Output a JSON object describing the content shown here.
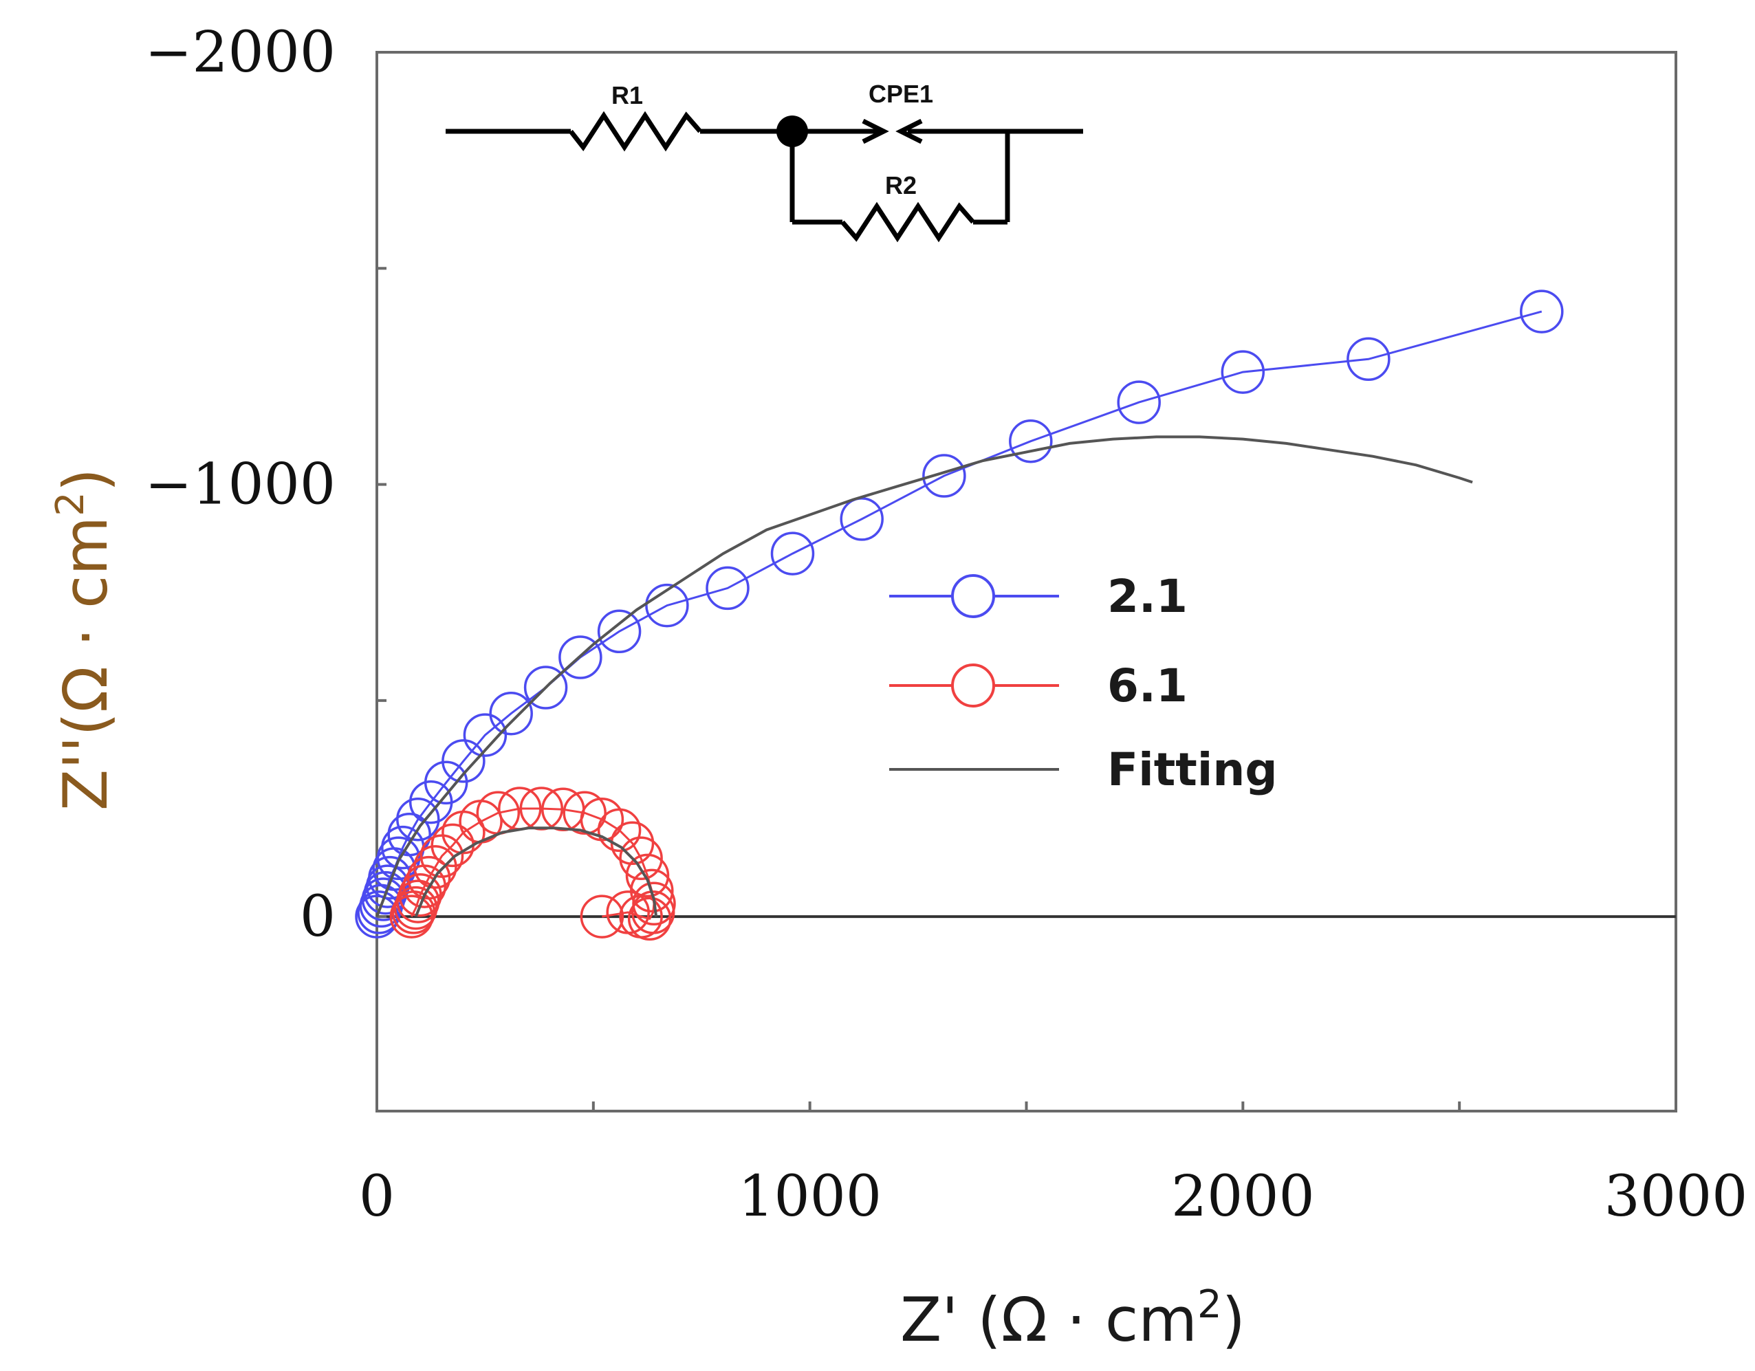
{
  "chart_data": {
    "type": "scatter",
    "title": "",
    "xlabel": "Z' (Ω · cm",
    "xlabel_sup": "2",
    "xlabel_end": ")",
    "ylabel": "Z''(Ω · cm",
    "ylabel_sup": "2",
    "ylabel_end": ")",
    "xlim": [
      0,
      3000
    ],
    "ylim": [
      450,
      -2000
    ],
    "x_ticks": [
      0,
      1000,
      2000,
      3000
    ],
    "x_tick_labels": [
      "0",
      "1000",
      "2000",
      "3000"
    ],
    "x_minor_ticks": [
      500,
      1500,
      2500
    ],
    "y_ticks": [
      0,
      -1000,
      -2000
    ],
    "y_tick_labels": [
      "0",
      "−1000",
      "−2000"
    ],
    "y_minor_ticks": [
      -500,
      -1500
    ],
    "zero_line": 0,
    "colors": {
      "series_2_1": "#4b4bf0",
      "series_6_1": "#f04040",
      "fitting": "#555555"
    },
    "circuit": {
      "r1": "R1",
      "cpe1": "CPE1",
      "r2": "R2"
    },
    "series": [
      {
        "name": "2.1",
        "style": "marker-line",
        "x": [
          0,
          5,
          10,
          15,
          20,
          25,
          30,
          40,
          50,
          60,
          75,
          95,
          125,
          160,
          200,
          250,
          310,
          390,
          470,
          560,
          670,
          810,
          960,
          1120,
          1310,
          1510,
          1760,
          2000,
          2290,
          2690
        ],
        "y": [
          0,
          -10,
          -25,
          -40,
          -55,
          -70,
          -90,
          -110,
          -135,
          -160,
          -190,
          -225,
          -265,
          -310,
          -360,
          -420,
          -470,
          -530,
          -600,
          -660,
          -720,
          -760,
          -840,
          -920,
          -1020,
          -1100,
          -1190,
          -1260,
          -1290,
          -1400
        ]
      },
      {
        "name": "6.1",
        "style": "marker-line",
        "x": [
          80,
          85,
          90,
          95,
          100,
          110,
          120,
          135,
          150,
          175,
          200,
          240,
          280,
          330,
          380,
          430,
          480,
          520,
          560,
          590,
          610,
          625,
          635,
          640,
          638,
          630,
          610,
          580,
          520
        ],
        "y": [
          0,
          -10,
          -20,
          -35,
          -50,
          -70,
          -90,
          -115,
          -140,
          -165,
          -195,
          -220,
          -240,
          -250,
          -250,
          -248,
          -240,
          -225,
          -200,
          -170,
          -135,
          -95,
          -60,
          -30,
          -10,
          5,
          0,
          -10,
          0
        ]
      },
      {
        "name": "Fitting",
        "style": "line",
        "x": [
          0,
          50,
          100,
          200,
          300,
          400,
          500,
          600,
          700,
          800,
          900,
          1000,
          1100,
          1200,
          1300,
          1400,
          1500,
          1600,
          1700,
          1800,
          1900,
          2000,
          2100,
          2200,
          2300,
          2400,
          2500,
          2530
        ],
        "y": [
          0,
          -130,
          -210,
          -330,
          -440,
          -540,
          -630,
          -710,
          -775,
          -840,
          -895,
          -930,
          -965,
          -995,
          -1025,
          -1055,
          -1075,
          -1095,
          -1105,
          -1110,
          -1110,
          -1105,
          -1095,
          -1080,
          -1065,
          -1045,
          -1015,
          -1005
        ]
      },
      {
        "name": "Fitting",
        "style": "line",
        "x": [
          90,
          110,
          140,
          180,
          230,
          290,
          350,
          410,
          470,
          520,
          565,
          600,
          625,
          640,
          645
        ],
        "y": [
          0,
          -50,
          -100,
          -140,
          -170,
          -195,
          -205,
          -205,
          -200,
          -185,
          -160,
          -125,
          -85,
          -40,
          0
        ]
      }
    ],
    "legend": [
      {
        "label": "2.1",
        "series": 0
      },
      {
        "label": "6.1",
        "series": 1
      },
      {
        "label": "Fitting",
        "series": 2
      }
    ]
  }
}
